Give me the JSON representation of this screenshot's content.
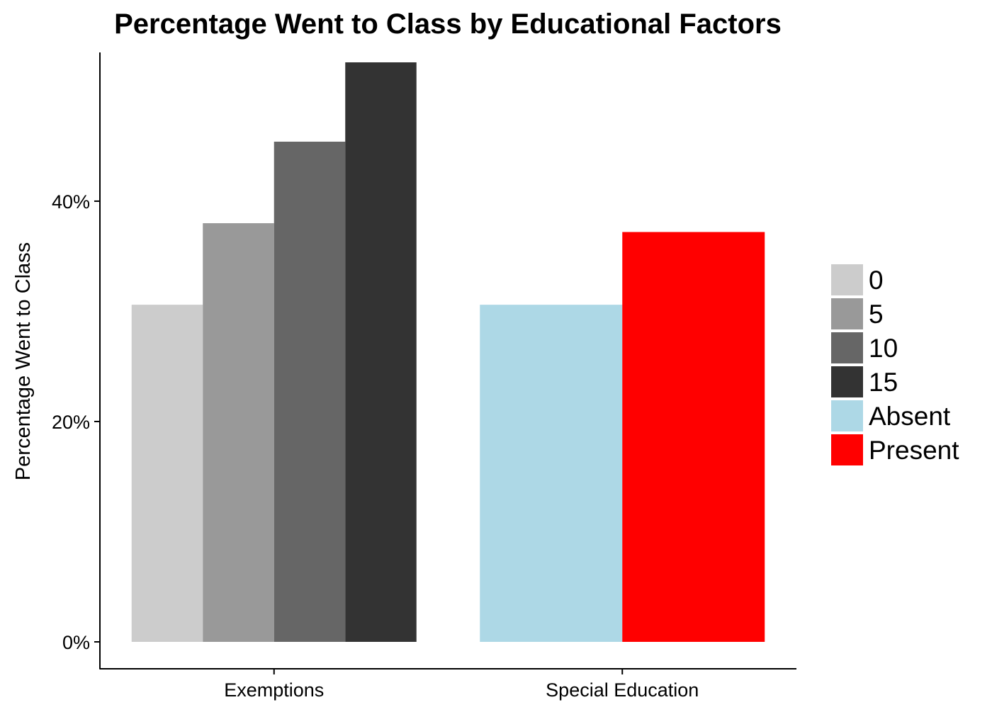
{
  "chart_data": {
    "type": "bar",
    "title": "Percentage Went to Class by Educational Factors",
    "xlabel": "",
    "ylabel": "Percentage Went to Class",
    "ylim": [
      0,
      53.5
    ],
    "yticks": [
      {
        "value": 0,
        "label": "0%"
      },
      {
        "value": 20,
        "label": "20%"
      },
      {
        "value": 40,
        "label": "40%"
      }
    ],
    "grid": false,
    "legend_position": "right",
    "categories": [
      "Exemptions",
      "Special Education"
    ],
    "groups": [
      {
        "category": "Exemptions",
        "bars": [
          {
            "key": "0",
            "value": 30.6,
            "color": "#cccccc"
          },
          {
            "key": "5",
            "value": 38.0,
            "color": "#999999"
          },
          {
            "key": "10",
            "value": 45.4,
            "color": "#666666"
          },
          {
            "key": "15",
            "value": 52.6,
            "color": "#333333"
          }
        ]
      },
      {
        "category": "Special Education",
        "bars": [
          {
            "key": "Absent",
            "value": 30.6,
            "color": "#add8e6"
          },
          {
            "key": "Present",
            "value": 37.2,
            "color": "#ff0000"
          }
        ]
      }
    ],
    "legend": [
      {
        "label": "0",
        "color": "#cccccc"
      },
      {
        "label": "5",
        "color": "#999999"
      },
      {
        "label": "10",
        "color": "#666666"
      },
      {
        "label": "15",
        "color": "#333333"
      },
      {
        "label": "Absent",
        "color": "#add8e6"
      },
      {
        "label": "Present",
        "color": "#ff0000"
      }
    ]
  }
}
